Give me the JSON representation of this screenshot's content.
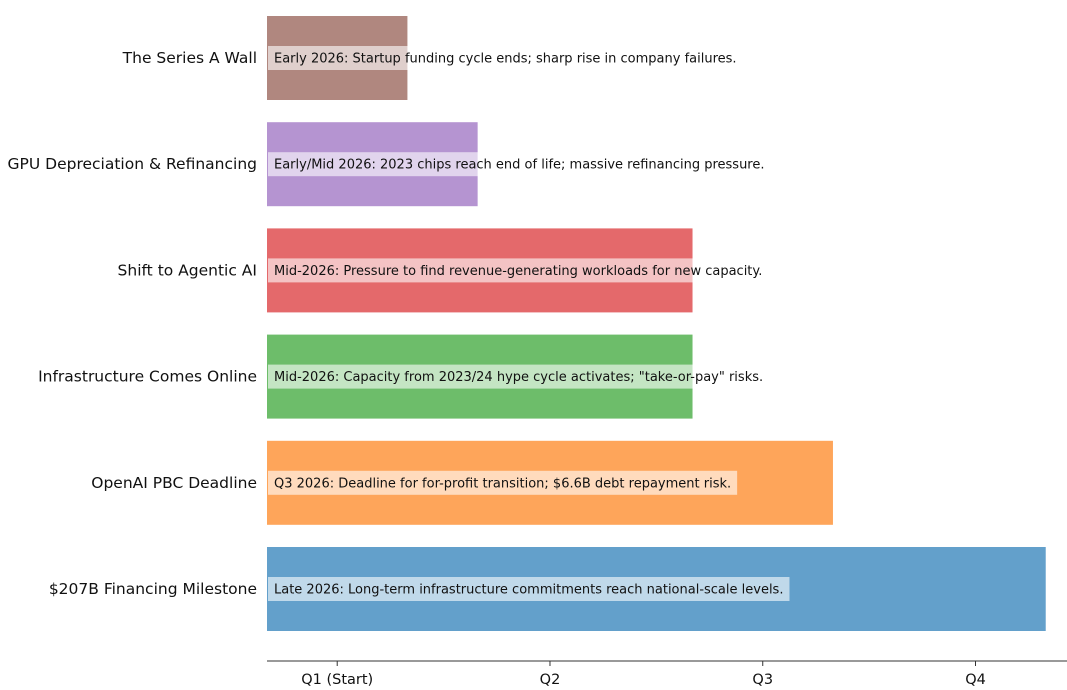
{
  "chart_data": {
    "type": "bar",
    "orientation": "horizontal",
    "categories": [
      "The Series A Wall",
      "GPU Depreciation & Refinancing",
      "Shift to Agentic AI",
      "Infrastructure Comes Online",
      "OpenAI PBC Deadline",
      "$207B Financing Milestone"
    ],
    "values": [
      0.33,
      0.66,
      1.67,
      1.67,
      2.33,
      3.33
    ],
    "colors": [
      "#b0877f",
      "#b594d1",
      "#e4696b",
      "#6dbd6a",
      "#fea55a",
      "#63a0cb"
    ],
    "annotations": [
      "Early 2026: Startup funding cycle ends; sharp rise in company failures.",
      "Early/Mid 2026: 2023 chips reach end of life; massive refinancing pressure.",
      "Mid-2026: Pressure to find revenue-generating workloads for new capacity.",
      "Mid-2026: Capacity from 2023/24 hype cycle activates; \"take-or-pay\" risks.",
      "Q3 2026: Deadline for for-profit transition; $6.6B debt repayment risk.",
      "Late 2026: Long-term infrastructure commitments reach national-scale levels."
    ],
    "xticks": [
      0,
      1,
      2,
      3
    ],
    "xtick_labels": [
      "Q1 (Start)",
      "Q2",
      "Q3",
      "Q4"
    ],
    "xlim": [
      -0.33,
      3.43
    ],
    "title": "",
    "xlabel": "",
    "ylabel": "",
    "grid": false,
    "legend": "none"
  }
}
